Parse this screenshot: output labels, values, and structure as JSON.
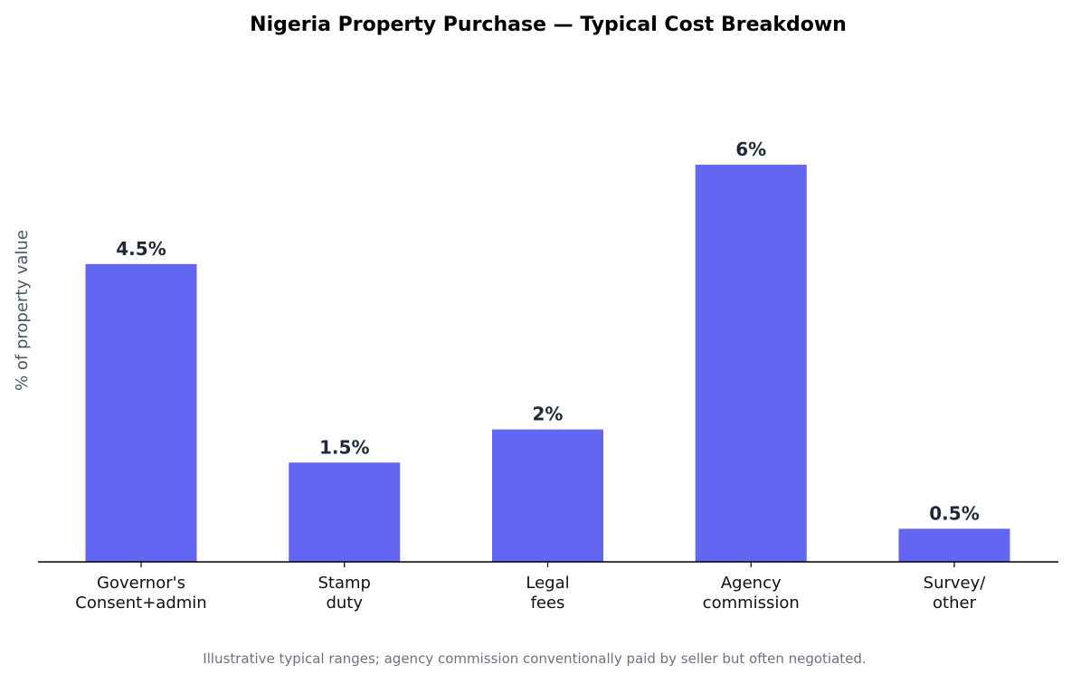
{
  "chart_data": {
    "type": "bar",
    "title": "Nigeria Property Purchase — Typical Cost Breakdown",
    "ylabel": "% of property value",
    "xlabel": "",
    "categories": [
      [
        "Governor's",
        "Consent+admin"
      ],
      [
        "Stamp",
        "duty"
      ],
      [
        "Legal",
        "fees"
      ],
      [
        "Agency",
        "commission"
      ],
      [
        "Survey/",
        "other"
      ]
    ],
    "values": [
      4.5,
      1.5,
      2,
      6,
      0.5
    ],
    "value_labels": [
      "4.5%",
      "1.5%",
      "2%",
      "6%",
      "0.5%"
    ],
    "ylim": [
      0,
      7.6
    ],
    "grid": false,
    "y_ticks_visible": false,
    "bar_color": "#6366f1",
    "caption": "Illustrative typical ranges; agency commission conventionally paid by seller but often negotiated."
  }
}
